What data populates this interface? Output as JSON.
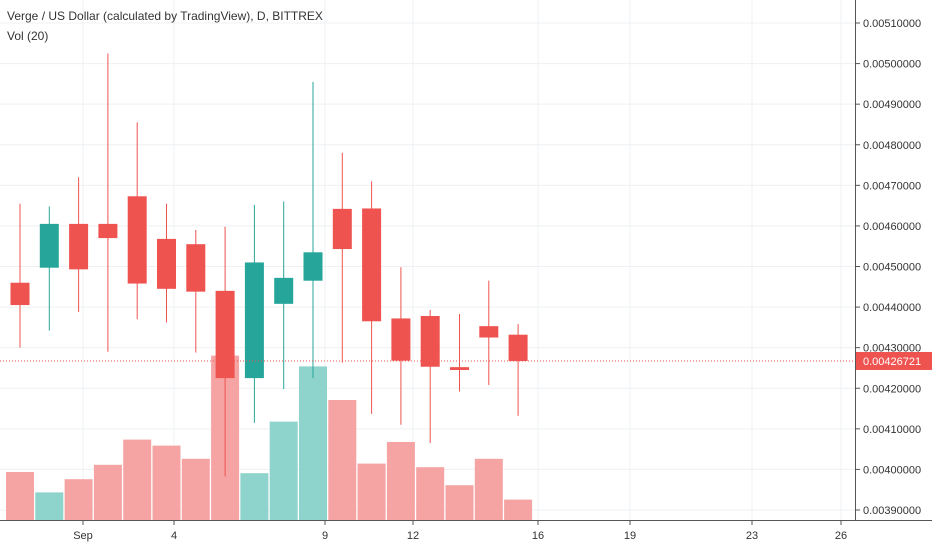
{
  "header": {
    "symbol_line": "Verge / US Dollar (calculated by TradingView), D, BITTREX",
    "volume_label": "Vol (20)"
  },
  "colors": {
    "up": "#26a69a",
    "down": "#ef5350",
    "vol_up": "#8ed3cc",
    "vol_down": "#f5a4a3",
    "grid": "#eef0f3",
    "axis_line": "#555555",
    "price_badge": "#ef5350"
  },
  "chart_data": {
    "type": "candlestick",
    "x_tick_labels": [
      "Sep",
      "4",
      "9",
      "12",
      "16",
      "19",
      "23",
      "26"
    ],
    "y_tick_labels": [
      "0.00390000",
      "0.00400000",
      "0.00410000",
      "0.00420000",
      "0.00430000",
      "0.00440000",
      "0.00450000",
      "0.00460000",
      "0.00470000",
      "0.00480000",
      "0.00490000",
      "0.00500000",
      "0.00510000"
    ],
    "y_ticks": [
      0.0039,
      0.004,
      0.0041,
      0.0042,
      0.0043,
      0.0044,
      0.0045,
      0.0046,
      0.0047,
      0.0048,
      0.0049,
      0.005,
      0.0051
    ],
    "last_price": 0.00426721,
    "last_price_label": "0.00426721",
    "candles": [
      {
        "open": 0.00446,
        "high": 0.004655,
        "low": 0.0043,
        "close": 0.004405
      },
      {
        "open": 0.004497,
        "high": 0.004648,
        "low": 0.004342,
        "close": 0.004605
      },
      {
        "open": 0.004605,
        "high": 0.00472,
        "low": 0.004388,
        "close": 0.004493
      },
      {
        "open": 0.004605,
        "high": 0.005025,
        "low": 0.00429,
        "close": 0.00457
      },
      {
        "open": 0.004673,
        "high": 0.004855,
        "low": 0.00437,
        "close": 0.004458
      },
      {
        "open": 0.004568,
        "high": 0.004655,
        "low": 0.004362,
        "close": 0.004445
      },
      {
        "open": 0.004555,
        "high": 0.00459,
        "low": 0.004288,
        "close": 0.004438
      },
      {
        "open": 0.00444,
        "high": 0.004598,
        "low": 0.003983,
        "close": 0.004225
      },
      {
        "open": 0.004225,
        "high": 0.004652,
        "low": 0.004115,
        "close": 0.00451
      },
      {
        "open": 0.004408,
        "high": 0.00466,
        "low": 0.004198,
        "close": 0.004472
      },
      {
        "open": 0.004465,
        "high": 0.004955,
        "low": 0.004225,
        "close": 0.004535
      },
      {
        "open": 0.004642,
        "high": 0.00478,
        "low": 0.004263,
        "close": 0.004543
      },
      {
        "open": 0.004643,
        "high": 0.00471,
        "low": 0.004137,
        "close": 0.004365
      },
      {
        "open": 0.004372,
        "high": 0.004498,
        "low": 0.00411,
        "close": 0.004268
      },
      {
        "open": 0.004378,
        "high": 0.004393,
        "low": 0.004065,
        "close": 0.004253
      },
      {
        "open": 0.004252,
        "high": 0.004383,
        "low": 0.004192,
        "close": 0.004245
      },
      {
        "open": 0.004353,
        "high": 0.004465,
        "low": 0.004208,
        "close": 0.004325
      },
      {
        "open": 0.004332,
        "high": 0.004358,
        "low": 0.004132,
        "close": 0.004267
      }
    ],
    "volume": [
      {
        "value": 0.4,
        "dir": "down"
      },
      {
        "value": 0.23,
        "dir": "up"
      },
      {
        "value": 0.34,
        "dir": "down"
      },
      {
        "value": 0.46,
        "dir": "down"
      },
      {
        "value": 0.67,
        "dir": "down"
      },
      {
        "value": 0.62,
        "dir": "down"
      },
      {
        "value": 0.51,
        "dir": "down"
      },
      {
        "value": 1.37,
        "dir": "down"
      },
      {
        "value": 0.39,
        "dir": "up"
      },
      {
        "value": 0.82,
        "dir": "up"
      },
      {
        "value": 1.28,
        "dir": "up"
      },
      {
        "value": 1.0,
        "dir": "down"
      },
      {
        "value": 0.47,
        "dir": "down"
      },
      {
        "value": 0.65,
        "dir": "down"
      },
      {
        "value": 0.44,
        "dir": "down"
      },
      {
        "value": 0.29,
        "dir": "down"
      },
      {
        "value": 0.51,
        "dir": "down"
      },
      {
        "value": 0.17,
        "dir": "down"
      }
    ]
  }
}
